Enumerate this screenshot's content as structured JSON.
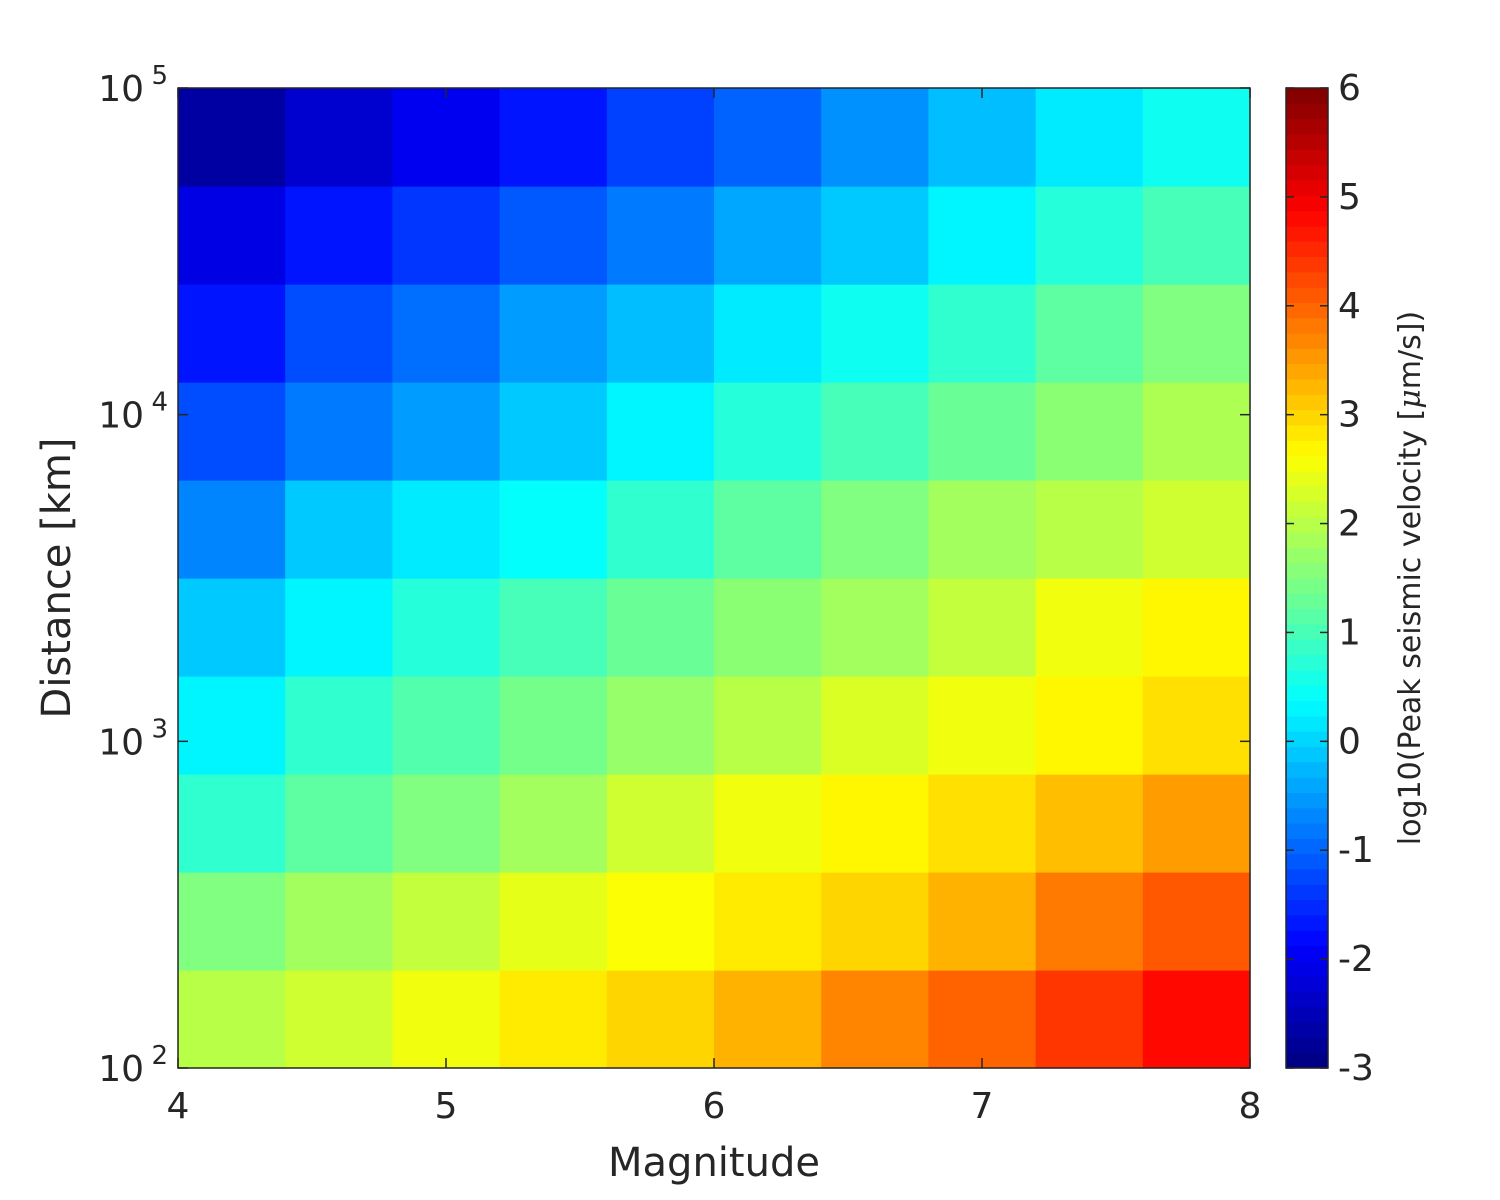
{
  "chart_data": {
    "type": "heatmap",
    "xlabel": "Magnitude",
    "ylabel": "Distance [km]",
    "xlim": [
      4,
      8
    ],
    "ylim": [
      100,
      100000
    ],
    "y_scale": "log",
    "x_ticks": [
      "4",
      "5",
      "6",
      "7",
      "8"
    ],
    "y_ticks": [
      {
        "base": "10",
        "exp": "2"
      },
      {
        "base": "10",
        "exp": "3"
      },
      {
        "base": "10",
        "exp": "4"
      },
      {
        "base": "10",
        "exp": "5"
      }
    ],
    "colorbar": {
      "label": "log10(Peak seismic velocity [",
      "label_mu": "μ",
      "label_tail": "m/s])",
      "range": [
        -3,
        6
      ],
      "ticks": [
        "-3",
        "-2",
        "-1",
        "0",
        "1",
        "2",
        "3",
        "4",
        "5",
        "6"
      ],
      "colormap": "jet"
    },
    "x_centers": [
      4.2,
      4.6,
      5.0,
      5.4,
      5.8,
      6.2,
      6.6,
      7.0,
      7.4,
      7.8
    ],
    "y_centers": [
      125.9,
      251.2,
      501.2,
      1000,
      1995,
      3981,
      7943,
      15849,
      31623,
      63096
    ],
    "values": [
      [
        2.0,
        2.2,
        2.5,
        2.8,
        3.0,
        3.3,
        3.7,
        4.0,
        4.4,
        4.8
      ],
      [
        1.5,
        1.8,
        2.1,
        2.4,
        2.6,
        2.8,
        3.0,
        3.3,
        3.8,
        4.1
      ],
      [
        0.8,
        1.2,
        1.5,
        1.8,
        2.2,
        2.5,
        2.7,
        2.9,
        3.2,
        3.5
      ],
      [
        0.3,
        0.8,
        1.1,
        1.4,
        1.7,
        2.0,
        2.3,
        2.5,
        2.7,
        2.9
      ],
      [
        -0.1,
        0.3,
        0.7,
        1.0,
        1.3,
        1.6,
        1.8,
        2.1,
        2.5,
        2.7
      ],
      [
        -0.7,
        -0.1,
        0.2,
        0.4,
        0.8,
        1.2,
        1.5,
        1.8,
        2.0,
        2.2
      ],
      [
        -1.2,
        -0.8,
        -0.5,
        -0.1,
        0.3,
        0.7,
        1.0,
        1.3,
        1.6,
        1.9
      ],
      [
        -1.7,
        -1.2,
        -0.9,
        -0.5,
        -0.2,
        0.2,
        0.5,
        0.8,
        1.2,
        1.5
      ],
      [
        -2.1,
        -1.7,
        -1.4,
        -1.1,
        -0.8,
        -0.4,
        -0.1,
        0.3,
        0.7,
        1.0
      ],
      [
        -2.7,
        -2.3,
        -2.0,
        -1.7,
        -1.3,
        -1.0,
        -0.6,
        -0.2,
        0.2,
        0.5
      ]
    ]
  }
}
